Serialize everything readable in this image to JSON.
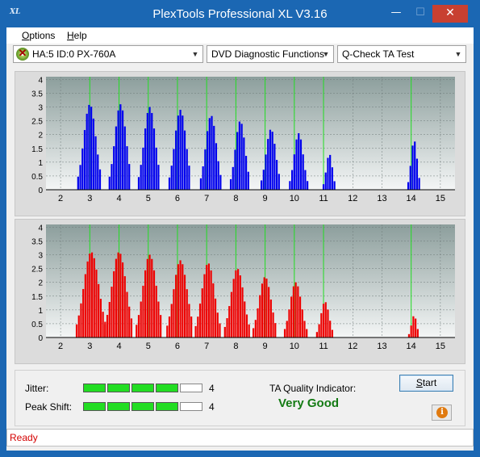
{
  "window": {
    "title": "PlexTools Professional XL V3.16",
    "icon_text": "XL",
    "minimize_glyph": "—",
    "maximize_glyph": "☐",
    "close_glyph": "✕"
  },
  "menu": {
    "items": [
      {
        "label_u": "O",
        "label_rest": "ptions"
      },
      {
        "label_u": "H",
        "label_rest": "elp"
      }
    ]
  },
  "toolbar": {
    "drive": "HA:5 ID:0  PX-760A",
    "function": "DVD Diagnostic Functions",
    "test": "Q-Check TA Test"
  },
  "chart_data": [
    {
      "type": "bar",
      "name": "top",
      "color": "#0000ee",
      "x_ticks": [
        "2",
        "3",
        "4",
        "5",
        "6",
        "7",
        "8",
        "9",
        "10",
        "11",
        "12",
        "13",
        "14",
        "15"
      ],
      "y_ticks": [
        "4",
        "3.5",
        "3",
        "2.5",
        "2",
        "1.5",
        "1",
        "0.5",
        "0"
      ],
      "xlim": [
        1.5,
        15.5
      ],
      "ylim": [
        0,
        4.1
      ],
      "marker_lines_x": [
        3,
        4,
        5,
        6,
        7,
        8,
        9,
        10,
        11,
        14
      ],
      "peaks": [
        {
          "x": 3.0,
          "h": 3.1,
          "w": 0.32
        },
        {
          "x": 4.05,
          "h": 3.1,
          "w": 0.3
        },
        {
          "x": 5.05,
          "h": 3.0,
          "w": 0.3
        },
        {
          "x": 6.1,
          "h": 2.9,
          "w": 0.3
        },
        {
          "x": 7.15,
          "h": 2.7,
          "w": 0.28
        },
        {
          "x": 8.15,
          "h": 2.5,
          "w": 0.26
        },
        {
          "x": 9.2,
          "h": 2.2,
          "w": 0.26
        },
        {
          "x": 10.15,
          "h": 2.05,
          "w": 0.24
        },
        {
          "x": 11.2,
          "h": 1.3,
          "w": 0.16
        },
        {
          "x": 14.1,
          "h": 1.8,
          "w": 0.16
        }
      ]
    },
    {
      "type": "bar",
      "name": "bottom",
      "color": "#ee0000",
      "x_ticks": [
        "2",
        "3",
        "4",
        "5",
        "6",
        "7",
        "8",
        "9",
        "10",
        "11",
        "12",
        "13",
        "14",
        "15"
      ],
      "y_ticks": [
        "4",
        "3.5",
        "3",
        "2.5",
        "2",
        "1.5",
        "1",
        "0.5",
        "0"
      ],
      "xlim": [
        1.5,
        15.5
      ],
      "ylim": [
        0,
        4.1
      ],
      "marker_lines_x": [
        3,
        4,
        5,
        6,
        7,
        8,
        9,
        10,
        11,
        14
      ],
      "peaks": [
        {
          "x": 3.05,
          "h": 3.1,
          "w": 0.4
        },
        {
          "x": 4.0,
          "h": 3.1,
          "w": 0.38
        },
        {
          "x": 5.05,
          "h": 3.0,
          "w": 0.36
        },
        {
          "x": 6.1,
          "h": 2.8,
          "w": 0.36
        },
        {
          "x": 7.05,
          "h": 2.7,
          "w": 0.34
        },
        {
          "x": 8.05,
          "h": 2.5,
          "w": 0.34
        },
        {
          "x": 9.0,
          "h": 2.2,
          "w": 0.32
        },
        {
          "x": 10.05,
          "h": 2.0,
          "w": 0.3
        },
        {
          "x": 11.05,
          "h": 1.3,
          "w": 0.22
        },
        {
          "x": 14.1,
          "h": 0.8,
          "w": 0.14
        }
      ]
    }
  ],
  "results": {
    "jitter_label": "Jitter:",
    "jitter_value": "4",
    "jitter_level": 4,
    "peak_shift_label": "Peak Shift:",
    "peak_shift_value": "4",
    "peak_shift_level": 4,
    "meter_segments": 5,
    "ta_quality_label": "TA Quality Indicator:",
    "ta_quality_value": "Very Good",
    "start_u": "S",
    "start_rest": "tart",
    "info_glyph": "i"
  },
  "status": {
    "text": "Ready"
  }
}
